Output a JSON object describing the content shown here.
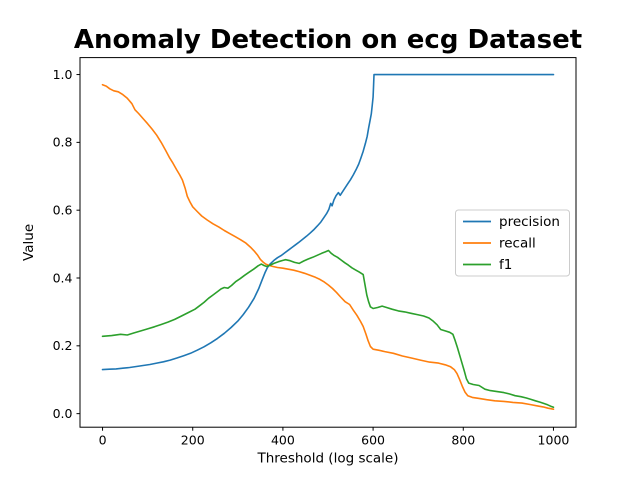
{
  "chart_data": {
    "type": "line",
    "title": "Anomaly Detection on ecg Dataset",
    "xlabel": "Threshold (log scale)",
    "ylabel": "Value",
    "xlim": [
      -50,
      1050
    ],
    "ylim": [
      -0.04,
      1.05
    ],
    "xticks": [
      0,
      200,
      400,
      600,
      800,
      1000
    ],
    "yticks": [
      0.0,
      0.2,
      0.4,
      0.6,
      0.8,
      1.0
    ],
    "grid": false,
    "legend_position": "center right",
    "colors": {
      "precision": "#1f77b4",
      "recall": "#ff7f0e",
      "f1": "#2ca02c"
    },
    "series": [
      {
        "name": "precision",
        "color": "#1f77b4",
        "points": [
          [
            0,
            0.13
          ],
          [
            15,
            0.131
          ],
          [
            30,
            0.132
          ],
          [
            45,
            0.134
          ],
          [
            60,
            0.136
          ],
          [
            75,
            0.139
          ],
          [
            90,
            0.142
          ],
          [
            105,
            0.145
          ],
          [
            120,
            0.149
          ],
          [
            135,
            0.153
          ],
          [
            150,
            0.158
          ],
          [
            165,
            0.164
          ],
          [
            180,
            0.171
          ],
          [
            195,
            0.178
          ],
          [
            210,
            0.187
          ],
          [
            225,
            0.197
          ],
          [
            240,
            0.209
          ],
          [
            255,
            0.222
          ],
          [
            270,
            0.237
          ],
          [
            285,
            0.254
          ],
          [
            300,
            0.273
          ],
          [
            312,
            0.292
          ],
          [
            324,
            0.314
          ],
          [
            336,
            0.34
          ],
          [
            346,
            0.368
          ],
          [
            354,
            0.395
          ],
          [
            360,
            0.415
          ],
          [
            366,
            0.432
          ],
          [
            372,
            0.442
          ],
          [
            380,
            0.452
          ],
          [
            388,
            0.46
          ],
          [
            396,
            0.466
          ],
          [
            404,
            0.474
          ],
          [
            412,
            0.482
          ],
          [
            420,
            0.49
          ],
          [
            428,
            0.498
          ],
          [
            436,
            0.506
          ],
          [
            444,
            0.514
          ],
          [
            452,
            0.523
          ],
          [
            460,
            0.532
          ],
          [
            468,
            0.542
          ],
          [
            476,
            0.553
          ],
          [
            484,
            0.565
          ],
          [
            491,
            0.578
          ],
          [
            497,
            0.59
          ],
          [
            502,
            0.603
          ],
          [
            506,
            0.62
          ],
          [
            509,
            0.613
          ],
          [
            513,
            0.63
          ],
          [
            518,
            0.643
          ],
          [
            523,
            0.652
          ],
          [
            527,
            0.644
          ],
          [
            532,
            0.654
          ],
          [
            538,
            0.666
          ],
          [
            544,
            0.678
          ],
          [
            550,
            0.69
          ],
          [
            556,
            0.704
          ],
          [
            562,
            0.719
          ],
          [
            568,
            0.736
          ],
          [
            573,
            0.754
          ],
          [
            578,
            0.774
          ],
          [
            583,
            0.797
          ],
          [
            587,
            0.818
          ],
          [
            590,
            0.842
          ],
          [
            593,
            0.862
          ],
          [
            596,
            0.884
          ],
          [
            598,
            0.908
          ],
          [
            600,
            0.934
          ],
          [
            601,
            0.962
          ],
          [
            602,
            1.0
          ],
          [
            1000,
            1.0
          ]
        ]
      },
      {
        "name": "recall",
        "color": "#ff7f0e",
        "points": [
          [
            0,
            0.97
          ],
          [
            8,
            0.966
          ],
          [
            16,
            0.958
          ],
          [
            25,
            0.952
          ],
          [
            35,
            0.949
          ],
          [
            45,
            0.941
          ],
          [
            55,
            0.93
          ],
          [
            65,
            0.914
          ],
          [
            72,
            0.896
          ],
          [
            80,
            0.885
          ],
          [
            90,
            0.87
          ],
          [
            100,
            0.855
          ],
          [
            110,
            0.839
          ],
          [
            120,
            0.821
          ],
          [
            130,
            0.8
          ],
          [
            140,
            0.776
          ],
          [
            148,
            0.756
          ],
          [
            156,
            0.739
          ],
          [
            164,
            0.72
          ],
          [
            171,
            0.704
          ],
          [
            177,
            0.689
          ],
          [
            183,
            0.665
          ],
          [
            188,
            0.641
          ],
          [
            194,
            0.624
          ],
          [
            200,
            0.61
          ],
          [
            210,
            0.596
          ],
          [
            220,
            0.583
          ],
          [
            232,
            0.571
          ],
          [
            245,
            0.56
          ],
          [
            258,
            0.55
          ],
          [
            270,
            0.54
          ],
          [
            282,
            0.531
          ],
          [
            294,
            0.522
          ],
          [
            306,
            0.513
          ],
          [
            318,
            0.503
          ],
          [
            328,
            0.491
          ],
          [
            336,
            0.48
          ],
          [
            344,
            0.467
          ],
          [
            350,
            0.455
          ],
          [
            356,
            0.447
          ],
          [
            362,
            0.441
          ],
          [
            370,
            0.437
          ],
          [
            378,
            0.434
          ],
          [
            388,
            0.431
          ],
          [
            400,
            0.429
          ],
          [
            412,
            0.426
          ],
          [
            424,
            0.423
          ],
          [
            436,
            0.419
          ],
          [
            448,
            0.414
          ],
          [
            460,
            0.408
          ],
          [
            472,
            0.402
          ],
          [
            482,
            0.396
          ],
          [
            492,
            0.388
          ],
          [
            501,
            0.379
          ],
          [
            510,
            0.369
          ],
          [
            519,
            0.357
          ],
          [
            528,
            0.344
          ],
          [
            538,
            0.33
          ],
          [
            548,
            0.322
          ],
          [
            556,
            0.305
          ],
          [
            564,
            0.29
          ],
          [
            572,
            0.272
          ],
          [
            578,
            0.257
          ],
          [
            584,
            0.235
          ],
          [
            589,
            0.215
          ],
          [
            594,
            0.198
          ],
          [
            600,
            0.19
          ],
          [
            612,
            0.187
          ],
          [
            626,
            0.183
          ],
          [
            645,
            0.178
          ],
          [
            665,
            0.17
          ],
          [
            685,
            0.164
          ],
          [
            705,
            0.158
          ],
          [
            725,
            0.152
          ],
          [
            745,
            0.149
          ],
          [
            760,
            0.144
          ],
          [
            772,
            0.138
          ],
          [
            780,
            0.13
          ],
          [
            786,
            0.118
          ],
          [
            792,
            0.1
          ],
          [
            798,
            0.08
          ],
          [
            804,
            0.063
          ],
          [
            810,
            0.053
          ],
          [
            820,
            0.048
          ],
          [
            835,
            0.045
          ],
          [
            852,
            0.041
          ],
          [
            870,
            0.038
          ],
          [
            890,
            0.036
          ],
          [
            910,
            0.033
          ],
          [
            930,
            0.031
          ],
          [
            948,
            0.027
          ],
          [
            963,
            0.023
          ],
          [
            977,
            0.02
          ],
          [
            988,
            0.016
          ],
          [
            1000,
            0.013
          ]
        ]
      },
      {
        "name": "f1",
        "color": "#2ca02c",
        "points": [
          [
            0,
            0.228
          ],
          [
            20,
            0.23
          ],
          [
            40,
            0.234
          ],
          [
            55,
            0.232
          ],
          [
            70,
            0.238
          ],
          [
            85,
            0.244
          ],
          [
            100,
            0.25
          ],
          [
            115,
            0.256
          ],
          [
            130,
            0.263
          ],
          [
            145,
            0.27
          ],
          [
            160,
            0.278
          ],
          [
            175,
            0.288
          ],
          [
            190,
            0.298
          ],
          [
            205,
            0.308
          ],
          [
            215,
            0.318
          ],
          [
            225,
            0.328
          ],
          [
            235,
            0.34
          ],
          [
            245,
            0.35
          ],
          [
            255,
            0.36
          ],
          [
            263,
            0.368
          ],
          [
            270,
            0.372
          ],
          [
            278,
            0.37
          ],
          [
            286,
            0.378
          ],
          [
            296,
            0.39
          ],
          [
            305,
            0.398
          ],
          [
            315,
            0.408
          ],
          [
            325,
            0.417
          ],
          [
            335,
            0.426
          ],
          [
            345,
            0.436
          ],
          [
            352,
            0.441
          ],
          [
            358,
            0.437
          ],
          [
            364,
            0.434
          ],
          [
            372,
            0.438
          ],
          [
            380,
            0.443
          ],
          [
            390,
            0.448
          ],
          [
            400,
            0.452
          ],
          [
            406,
            0.454
          ],
          [
            416,
            0.451
          ],
          [
            426,
            0.446
          ],
          [
            436,
            0.443
          ],
          [
            446,
            0.45
          ],
          [
            456,
            0.456
          ],
          [
            466,
            0.461
          ],
          [
            476,
            0.467
          ],
          [
            486,
            0.473
          ],
          [
            494,
            0.477
          ],
          [
            501,
            0.481
          ],
          [
            507,
            0.473
          ],
          [
            514,
            0.466
          ],
          [
            521,
            0.461
          ],
          [
            529,
            0.453
          ],
          [
            537,
            0.445
          ],
          [
            545,
            0.438
          ],
          [
            553,
            0.43
          ],
          [
            561,
            0.424
          ],
          [
            569,
            0.418
          ],
          [
            578,
            0.41
          ],
          [
            582,
            0.38
          ],
          [
            586,
            0.35
          ],
          [
            590,
            0.33
          ],
          [
            594,
            0.315
          ],
          [
            600,
            0.31
          ],
          [
            610,
            0.313
          ],
          [
            620,
            0.317
          ],
          [
            630,
            0.313
          ],
          [
            642,
            0.308
          ],
          [
            656,
            0.303
          ],
          [
            670,
            0.3
          ],
          [
            684,
            0.296
          ],
          [
            698,
            0.292
          ],
          [
            712,
            0.288
          ],
          [
            724,
            0.282
          ],
          [
            734,
            0.272
          ],
          [
            742,
            0.262
          ],
          [
            750,
            0.248
          ],
          [
            760,
            0.244
          ],
          [
            770,
            0.24
          ],
          [
            777,
            0.234
          ],
          [
            782,
            0.215
          ],
          [
            787,
            0.195
          ],
          [
            792,
            0.172
          ],
          [
            797,
            0.15
          ],
          [
            802,
            0.127
          ],
          [
            807,
            0.103
          ],
          [
            812,
            0.09
          ],
          [
            822,
            0.086
          ],
          [
            835,
            0.083
          ],
          [
            848,
            0.072
          ],
          [
            860,
            0.068
          ],
          [
            875,
            0.065
          ],
          [
            890,
            0.062
          ],
          [
            903,
            0.058
          ],
          [
            915,
            0.053
          ],
          [
            928,
            0.05
          ],
          [
            940,
            0.046
          ],
          [
            950,
            0.042
          ],
          [
            960,
            0.038
          ],
          [
            970,
            0.034
          ],
          [
            979,
            0.03
          ],
          [
            987,
            0.026
          ],
          [
            994,
            0.022
          ],
          [
            1000,
            0.019
          ]
        ]
      }
    ]
  }
}
